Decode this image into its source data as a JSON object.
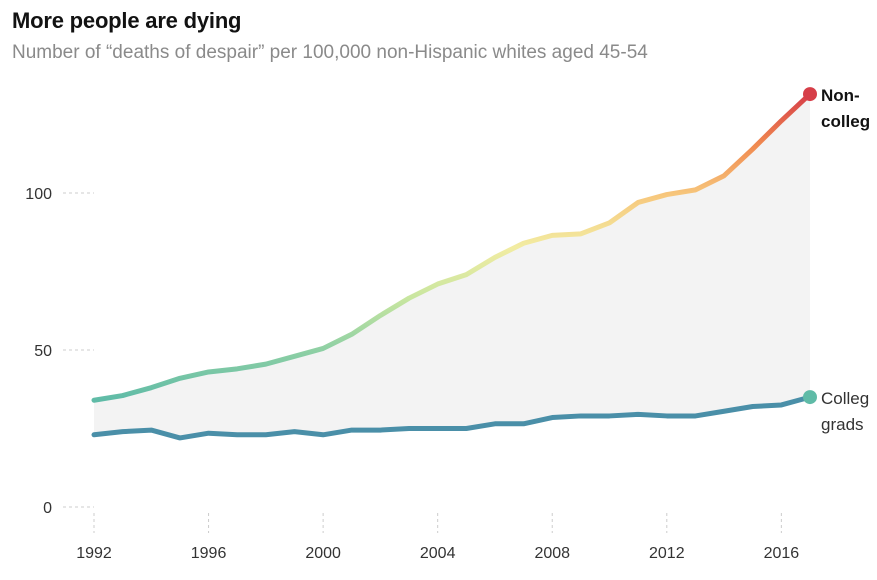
{
  "title": "More people are dying",
  "subtitle": "Number of “deaths of despair” per 100,000 non-Hispanic whites aged 45-54",
  "chart_data": {
    "type": "line",
    "title": "More people are dying",
    "subtitle": "Number of “deaths of despair” per 100,000 non-Hispanic whites aged 45-54",
    "x": [
      1992,
      1993,
      1994,
      1995,
      1996,
      1997,
      1998,
      1999,
      2000,
      2001,
      2002,
      2003,
      2004,
      2005,
      2006,
      2007,
      2008,
      2009,
      2010,
      2011,
      2012,
      2013,
      2014,
      2015,
      2016,
      2017
    ],
    "x_ticks": [
      1992,
      1996,
      2000,
      2004,
      2008,
      2012,
      2016
    ],
    "y_ticks": [
      0,
      50,
      100
    ],
    "xlim": [
      1992,
      2017
    ],
    "ylim": [
      0,
      130
    ],
    "grid": false,
    "series": [
      {
        "name": "Non-college",
        "label_lines": [
          "Non-",
          "colleg"
        ],
        "values": [
          34,
          35.5,
          38,
          41,
          43,
          44,
          45.5,
          48,
          50.5,
          55,
          61,
          66.5,
          71,
          74,
          79.5,
          84,
          86.5,
          87,
          90.5,
          97,
          99.5,
          101,
          105.5,
          114,
          123,
          131.5
        ]
      },
      {
        "name": "College grads",
        "label_lines": [
          "Colleg",
          "grads"
        ],
        "values": [
          23,
          24,
          24.5,
          22,
          23.5,
          23,
          23,
          24,
          23,
          24.5,
          24.5,
          25,
          25,
          25,
          26.5,
          26.5,
          28.5,
          29,
          29,
          29.5,
          29,
          29,
          30.5,
          32,
          32.5,
          35
        ]
      }
    ],
    "colors": {
      "college": "#4a8fa8",
      "college_endpoint": "#5fbba7",
      "gradient_noncollege": [
        "#5fbba7",
        "#8fd0a4",
        "#c8e6a0",
        "#f2eca2",
        "#f7c87d",
        "#f08a50",
        "#d63e48"
      ],
      "gap_fill": "#f3f3f3",
      "axis_tick": "#cccccc"
    }
  }
}
